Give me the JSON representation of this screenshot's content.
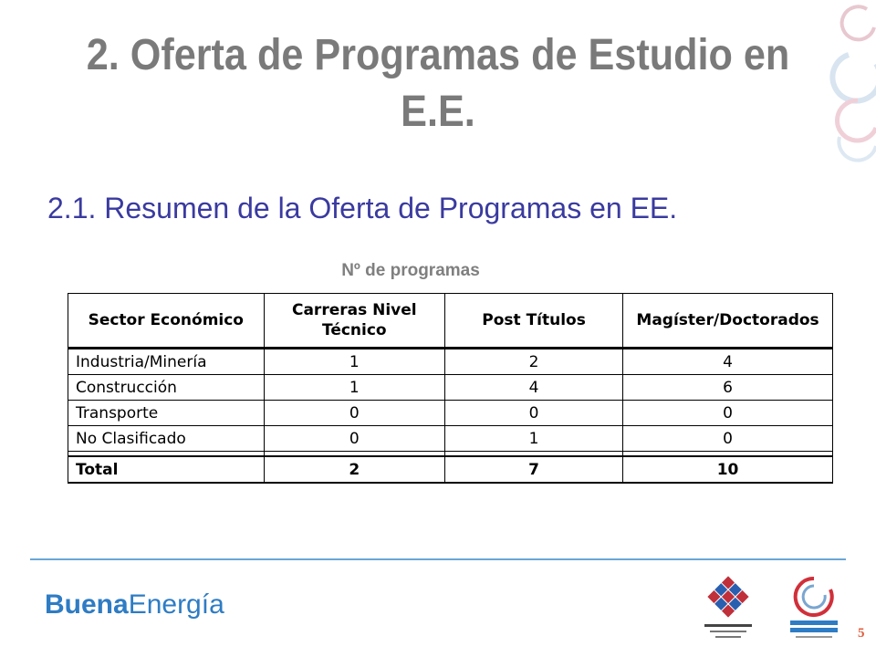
{
  "slide": {
    "title": "2. Oferta de Programas de Estudio en E.E.",
    "subtitle": "2.1. Resumen de la Oferta de Programas en EE.",
    "table_caption": "Nº de programas"
  },
  "table": {
    "headers": [
      "Sector Económico",
      "Carreras Nivel Técnico",
      "Post Títulos",
      "Magíster/Doctorados"
    ],
    "rows": [
      {
        "sector": "Industria/Minería",
        "tecnico": "1",
        "post": "2",
        "magister": "4"
      },
      {
        "sector": "Construcción",
        "tecnico": "1",
        "post": "4",
        "magister": "6"
      },
      {
        "sector": "Transporte",
        "tecnico": "0",
        "post": "0",
        "magister": "0"
      },
      {
        "sector": "No Clasificado",
        "tecnico": "0",
        "post": "1",
        "magister": "0"
      }
    ],
    "total": {
      "label": "Total",
      "tecnico": "2",
      "post": "7",
      "magister": "10"
    }
  },
  "footer": {
    "brand_bold": "Buena",
    "brand_regular": "Energía",
    "gov_logo_icon": "gobierno-de-chile-logo",
    "ee_logo_icon": "eficiencia-energetica-logo",
    "page_number": "5",
    "divider_color": "#6aa6d6"
  }
}
